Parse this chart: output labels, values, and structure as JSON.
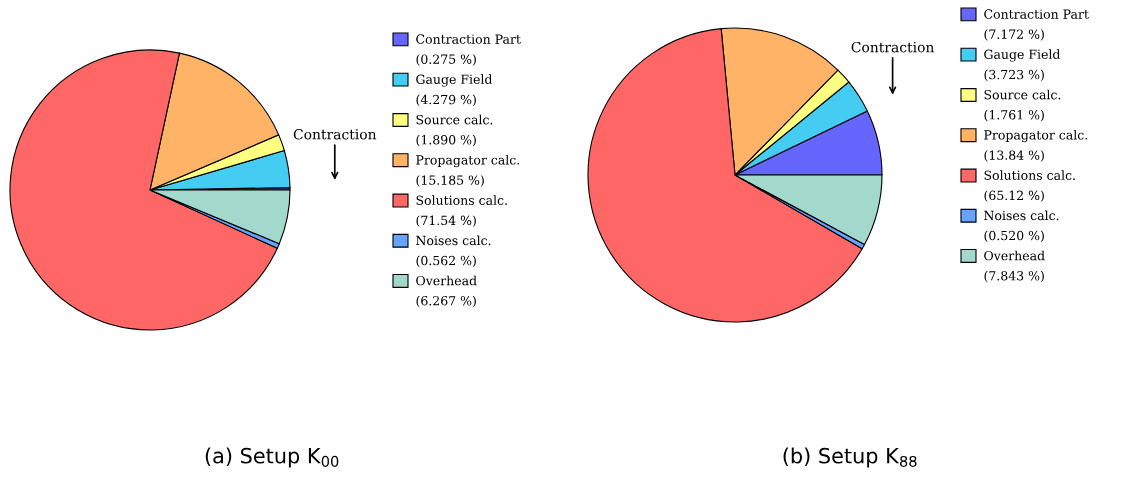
{
  "chart_data": [
    {
      "type": "pie",
      "title": "(a) Setup K$_{00}$",
      "categories": [
        "Contraction Part",
        "Gauge Field",
        "Source calc.",
        "Propagator calc.",
        "Solutions calc.",
        "Noises calc.",
        "Overhead"
      ],
      "values": [
        0.275,
        4.279,
        1.89,
        15.185,
        71.54,
        0.562,
        6.267
      ],
      "value_labels": [
        "(0.275 %)",
        "(4.279 %)",
        "(1.890 %)",
        "(15.185 %)",
        "(71.54 %)",
        "(0.562 %)",
        "(6.267 %)"
      ],
      "colors": [
        "#6666ff",
        "#44ccf2",
        "#ffff80",
        "#ffb366",
        "#ff6666",
        "#66a3ff",
        "#a3d9cc"
      ],
      "legend": "right",
      "annotations": [
        {
          "text": "Contraction",
          "x": "Contraction Part"
        }
      ]
    },
    {
      "type": "pie",
      "title": "(b) Setup K$_{88}$",
      "categories": [
        "Contraction Part",
        "Gauge Field",
        "Source calc.",
        "Propagator calc.",
        "Solutions calc.",
        "Noises calc.",
        "Overhead"
      ],
      "values": [
        7.172,
        3.723,
        1.761,
        13.84,
        65.12,
        0.52,
        7.843
      ],
      "value_labels": [
        "(7.172 %)",
        "(3.723 %)",
        "(1.761 %)",
        "(13.84 %)",
        "(65.12 %)",
        "(0.520 %)",
        "(7.843 %)"
      ],
      "colors": [
        "#6666ff",
        "#44ccf2",
        "#ffff80",
        "#ffb366",
        "#ff6666",
        "#66a3ff",
        "#a3d9cc"
      ],
      "legend": "right",
      "annotations": [
        {
          "text": "Contraction",
          "x": "Contraction Part"
        }
      ]
    }
  ]
}
